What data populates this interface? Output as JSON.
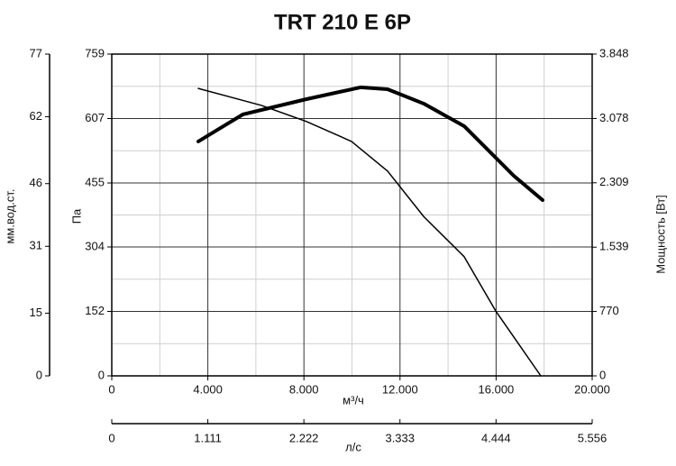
{
  "chart_data": {
    "type": "line",
    "title": "TRT 210 E 6P",
    "x_label": "м³/ч",
    "x2_label": "л/с",
    "y_label": "Па",
    "y2_label": "Мощность [Вт]",
    "y3_label": "мм.вод.ст.",
    "xlim": [
      0,
      20000
    ],
    "xticks": [
      0,
      {
        "value": 4000,
        "label": "4.000"
      },
      {
        "value": 8000,
        "label": "8.000"
      },
      {
        "value": 12000,
        "label": "12.000"
      },
      {
        "value": 16000,
        "label": "16.000"
      },
      {
        "value": 20000,
        "label": "20.000"
      }
    ],
    "x2lim": [
      0,
      5556
    ],
    "x2ticks": [
      0,
      {
        "value": 1111,
        "label": "1.111"
      },
      {
        "value": 2222,
        "label": "2.222"
      },
      {
        "value": 3333,
        "label": "3.333"
      },
      {
        "value": 4444,
        "label": "4.444"
      },
      {
        "value": 5556,
        "label": "5.556"
      }
    ],
    "ylim": [
      0,
      759
    ],
    "yticks": [
      0,
      152,
      304,
      455,
      607,
      759
    ],
    "y2lim": [
      0,
      3848
    ],
    "y2ticks": [
      0,
      770,
      {
        "value": 1539,
        "label": "1.539"
      },
      {
        "value": 2309,
        "label": "2.309"
      },
      {
        "value": 3078,
        "label": "3.078"
      },
      {
        "value": 3848,
        "label": "3.848"
      }
    ],
    "y3lim": [
      0,
      77
    ],
    "y3ticks": [
      0,
      15,
      31,
      46,
      62,
      77
    ],
    "grid": true,
    "series": [
      {
        "color": "#000000",
        "line_width": 1.5,
        "x": [
          3602,
          6229,
          8105,
          9981,
          11482,
          12983,
          14672,
          15985,
          17861
        ],
        "values": [
          678,
          638,
          600,
          553,
          483,
          376,
          281,
          153,
          0
        ]
      },
      {
        "color": "#000000",
        "line_width": 4,
        "axis": "y2",
        "x": [
          3602,
          5455,
          8105,
          10356,
          11482,
          12983,
          14672,
          16736,
          17936
        ],
        "values": [
          2803,
          3126,
          3309,
          3450,
          3428,
          3256,
          2986,
          2393,
          2102
        ]
      }
    ]
  }
}
